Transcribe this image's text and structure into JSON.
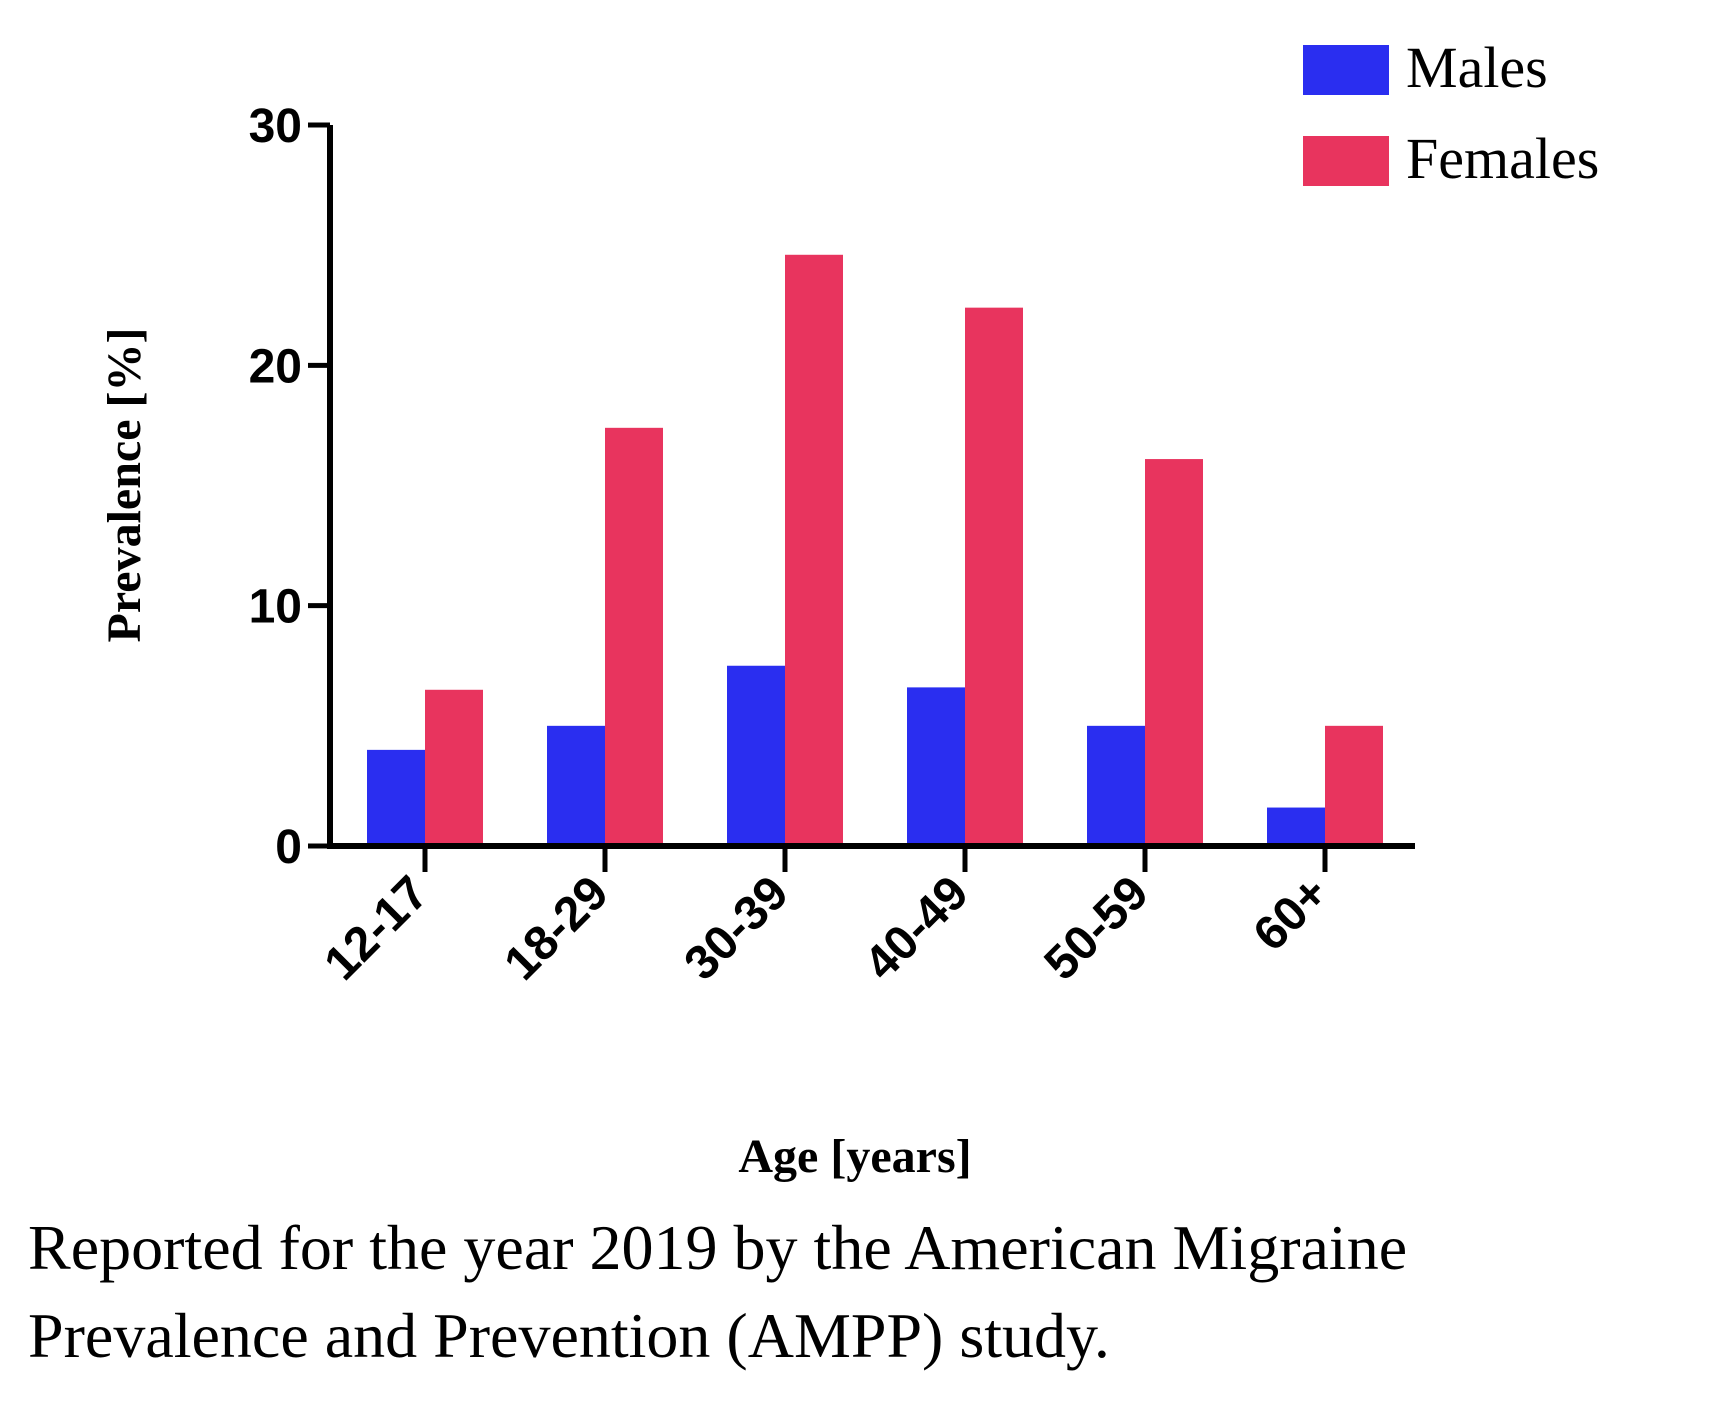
{
  "chart_data": {
    "type": "bar",
    "categories": [
      "12-17",
      "18-29",
      "30-39",
      "40-49",
      "50-59",
      "60+"
    ],
    "series": [
      {
        "name": "Males",
        "color": "#2a2ef0",
        "values": [
          4.0,
          5.0,
          7.5,
          6.6,
          5.0,
          1.6
        ]
      },
      {
        "name": "Females",
        "color": "#e8345e",
        "values": [
          6.5,
          17.4,
          24.6,
          22.4,
          16.1,
          5.0
        ]
      }
    ],
    "title": "",
    "xlabel": "Age [years]",
    "ylabel": "Prevalence [%]",
    "ylim": [
      0,
      30
    ],
    "yticks": [
      0,
      10,
      20,
      30
    ],
    "grid": false,
    "legend_position": "top-right"
  },
  "caption": "Reported for the year 2019 by the American Migraine Prevalence and Prevention (AMPP) study."
}
